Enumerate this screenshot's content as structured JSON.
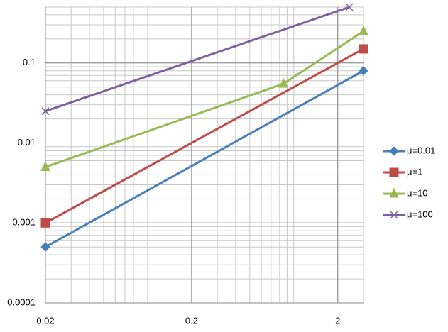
{
  "chart_data": {
    "type": "line",
    "xscale": "log",
    "yscale": "log",
    "grid": true,
    "minor_grid": true,
    "legend": "right",
    "xlim": [
      0.02,
      3
    ],
    "xticks": [
      0.02,
      0.2,
      2
    ],
    "ylim": [
      0.0001,
      0.5
    ],
    "yticks": [
      0.0001,
      0.001,
      0.01,
      0.1
    ],
    "series": [
      {
        "name": "μ=0.01",
        "color": "#4a7ebb",
        "marker": "diamond",
        "x": [
          0.02,
          3
        ],
        "values": [
          0.0005,
          0.08
        ]
      },
      {
        "name": "μ=1",
        "color": "#be4b48",
        "marker": "square",
        "x": [
          0.02,
          3
        ],
        "values": [
          0.001,
          0.15
        ]
      },
      {
        "name": "μ=10",
        "color": "#98b954",
        "marker": "triangle",
        "x": [
          0.02,
          0.85,
          3
        ],
        "values": [
          0.005,
          0.055,
          0.25
        ]
      },
      {
        "name": "μ=100",
        "color": "#7d60a0",
        "marker": "x",
        "x": [
          0.02,
          2.4
        ],
        "values": [
          0.025,
          0.5
        ]
      }
    ]
  }
}
